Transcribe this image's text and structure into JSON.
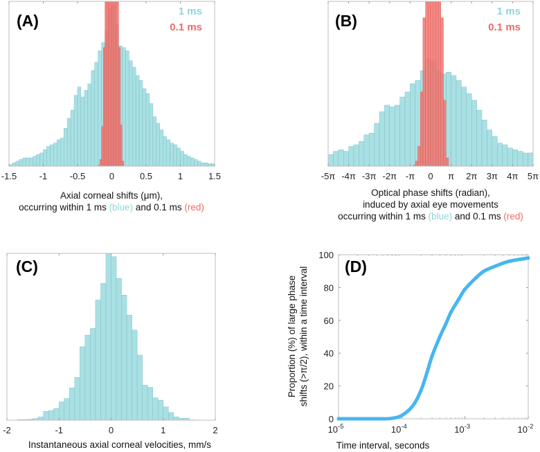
{
  "colors": {
    "blue_fill": "#a9e0e4",
    "blue_edge": "#72b8be",
    "red_fill": "#f27570",
    "red_edge": "#d9534f",
    "curve": "#47b6ef",
    "legend_blue": "#8ed6de",
    "legend_red": "#f06a64"
  },
  "chart_data": [
    {
      "type": "bar",
      "panel_label": "(A)",
      "legend": [
        "1 ms",
        "0.1 ms"
      ],
      "xlabel_line1": "Axial corneal shifts (μm),",
      "xlabel_line2_a": "occurring within 1 ms ",
      "xlabel_line2_blue": "(blue)",
      "xlabel_line2_b": " and 0.1 ms ",
      "xlabel_line2_red": "(red)",
      "xlim": [
        -1.5,
        1.5
      ],
      "ylim": [
        0,
        100
      ],
      "xticks": [
        -1.5,
        -1,
        -0.5,
        0,
        0.5,
        1,
        1.5
      ],
      "xtick_labels": [
        "-1.5",
        "-1",
        "-0.5",
        "0",
        "0.5",
        "1",
        "1.5"
      ],
      "series": [
        {
          "name": "1 ms",
          "bin_start": -1.5,
          "bin_width": 0.05,
          "values": [
            1,
            2,
            3,
            4,
            5,
            5,
            5,
            6,
            7,
            8,
            10,
            12,
            13,
            14,
            16,
            17,
            23,
            29,
            34,
            43,
            48,
            42,
            46,
            50,
            58,
            63,
            70,
            75,
            82,
            96,
            98,
            86,
            73,
            72,
            70,
            64,
            60,
            55,
            52,
            47,
            44,
            38,
            30,
            26,
            22,
            18,
            16,
            14,
            13,
            11,
            9,
            7,
            6,
            5,
            4,
            3,
            2,
            2,
            1.5,
            1.5
          ]
        },
        {
          "name": "0.1 ms",
          "bin_start": -0.2,
          "bin_width": 0.025,
          "values": [
            0.5,
            4,
            24,
            72,
            140,
            200,
            220,
            230,
            230,
            220,
            200,
            140,
            72,
            25,
            3
          ]
        }
      ]
    },
    {
      "type": "bar",
      "panel_label": "(B)",
      "legend": [
        "1 ms",
        "0.1 ms"
      ],
      "xlabel_line1": "Optical phase shifts (radian),",
      "xlabel_line2": "induced by axial eye movements",
      "xlabel_line3_a": "occurring within 1 ms ",
      "xlabel_line3_blue": "(blue)",
      "xlabel_line3_b": " and 0.1 ms ",
      "xlabel_line3_red": "(red)",
      "x_units": "multiples of pi",
      "xlim": [
        -5,
        5
      ],
      "ylim": [
        0,
        100
      ],
      "xticks": [
        -5,
        -4,
        -3,
        -2,
        -1,
        0,
        1,
        2,
        3,
        4,
        5
      ],
      "xtick_labels": [
        "-5π",
        "-4π",
        "-3π",
        "-2π",
        "-π",
        "0",
        "π",
        "2π",
        "3π",
        "4π",
        "5π"
      ],
      "series": [
        {
          "name": "1 ms",
          "bin_start": -5,
          "bin_width": 0.25,
          "values": [
            7,
            9,
            10,
            9,
            12,
            13,
            15,
            19,
            20,
            26,
            33,
            37,
            36,
            37,
            42,
            45,
            50,
            52,
            58,
            65,
            64,
            58,
            56,
            57,
            55,
            52,
            48,
            44,
            40,
            34,
            28,
            22,
            18,
            14,
            13,
            11,
            10,
            9,
            8,
            8
          ]
        },
        {
          "name": "0.1 ms",
          "bin_start": -0.875,
          "bin_width": 0.125,
          "values": [
            0.5,
            3,
            12,
            45,
            90,
            150,
            200,
            210,
            210,
            200,
            150,
            90,
            40,
            5
          ]
        }
      ]
    },
    {
      "type": "bar",
      "panel_label": "(C)",
      "xlabel": "Instantaneous axial corneal velocities, mm/s",
      "xlim": [
        -2,
        2
      ],
      "ylim": [
        0,
        100
      ],
      "xticks": [
        -2,
        -1,
        0,
        1,
        2
      ],
      "xtick_labels": [
        "-2",
        "-1",
        "0",
        "1",
        "2"
      ],
      "series": [
        {
          "name": "velocities",
          "bin_start": -1.8,
          "bin_width": 0.1,
          "values": [
            0.3,
            0.3,
            0.5,
            1,
            2,
            5.3,
            5.8,
            7,
            11,
            13,
            19.4,
            25.6,
            44,
            51,
            55,
            72,
            82,
            100,
            98,
            85,
            75,
            63,
            54,
            39,
            21,
            19.7,
            13.4,
            12,
            8,
            4.6,
            2,
            1.2,
            1.2,
            0.2,
            0.1
          ]
        }
      ]
    },
    {
      "type": "line",
      "panel_label": "(D)",
      "xlabel": "Time interval, seconds",
      "ylabel_line1": "Proportion (%) of large phase",
      "ylabel_line2": "shifts (>π/2), within a time interval",
      "xscale": "log",
      "xlim": [
        1e-05,
        0.01
      ],
      "ylim": [
        0,
        100
      ],
      "xticks": [
        1e-05,
        0.0001,
        0.001,
        0.01
      ],
      "xtick_base": "10",
      "xtick_exponents": [
        "-5",
        "-4",
        "-3",
        "-2"
      ],
      "yticks": [
        0,
        20,
        40,
        60,
        80,
        100
      ],
      "ytick_labels": [
        "0",
        "20",
        "40",
        "60",
        "80",
        "100"
      ],
      "x": [
        1e-05,
        3e-05,
        5e-05,
        7e-05,
        0.0001,
        0.00015,
        0.0002,
        0.00025,
        0.0003,
        0.0004,
        0.0005,
        0.0006,
        0.0008,
        0.001,
        0.0015,
        0.002,
        0.003,
        0.005,
        0.01
      ],
      "y": [
        0,
        0,
        0,
        0.3,
        2,
        8,
        17,
        28,
        38,
        50,
        58,
        65,
        73,
        79,
        86,
        90,
        93,
        96,
        98
      ]
    }
  ]
}
